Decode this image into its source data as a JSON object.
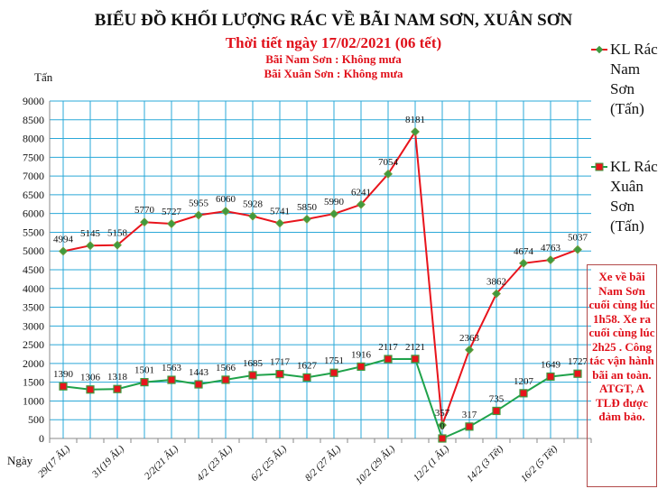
{
  "titles": {
    "main": "BIỂU ĐỒ KHỐI LƯỢNG RÁC VỀ BÃI NAM SƠN, XUÂN SƠN",
    "weather": "Thời tiết ngày 17/02/2021 (06 tết)",
    "nam_son": "Bãi Nam Sơn : Không mưa",
    "xuan_son": "Bãi Xuân Sơn : Không mưa"
  },
  "note": "Xe về bãi Nam Sơn cuối cùng lúc 1h58. Xe ra cuối cùng lúc 2h25 . Công tác vận hành bãi an toàn. ATGT, A TLĐ được đảm bảo.",
  "chart_data": {
    "type": "line",
    "ylabel": "Tấn",
    "xlabel": "Ngày",
    "ylim": [
      0,
      9000
    ],
    "yticks": [
      0,
      500,
      1000,
      1500,
      2000,
      2500,
      3000,
      3500,
      4000,
      4500,
      5000,
      5500,
      6000,
      6500,
      7000,
      7500,
      8000,
      8500,
      9000
    ],
    "grid": true,
    "legend_position": "right",
    "x_tick_labels": [
      "29(17 ÂL)",
      "",
      "31(19 ÂL)",
      "",
      "2/2(21 ÂL)",
      "",
      "4/2 (23 ÂL)",
      "",
      "6/2 (25 ÂL)",
      "",
      "8/2 (27 ÂL)",
      "",
      "10/2 (29 ÂL)",
      "",
      "12/2 (1 ÂL)",
      "",
      "14/2 (3 Tết)",
      "",
      "16/2 (5 Tết)",
      ""
    ],
    "series": [
      {
        "name": "KL Rác Nam Sơn (Tấn)",
        "color": "#e8141c",
        "marker_color": "#3f9a3f",
        "values": [
          4994,
          5145,
          5158,
          5770,
          5727,
          5955,
          6060,
          5928,
          5741,
          5850,
          5990,
          6241,
          7054,
          8181,
          357,
          2363,
          3862,
          4674,
          4763,
          5037
        ]
      },
      {
        "name": "KL Rác Xuân Sơn (Tấn)",
        "color": "#1fa24a",
        "marker_color": "#e8141c",
        "values": [
          1390,
          1306,
          1318,
          1501,
          1563,
          1443,
          1566,
          1685,
          1717,
          1627,
          1751,
          1916,
          2117,
          2121,
          0,
          317,
          735,
          1207,
          1649,
          1727
        ]
      }
    ]
  }
}
